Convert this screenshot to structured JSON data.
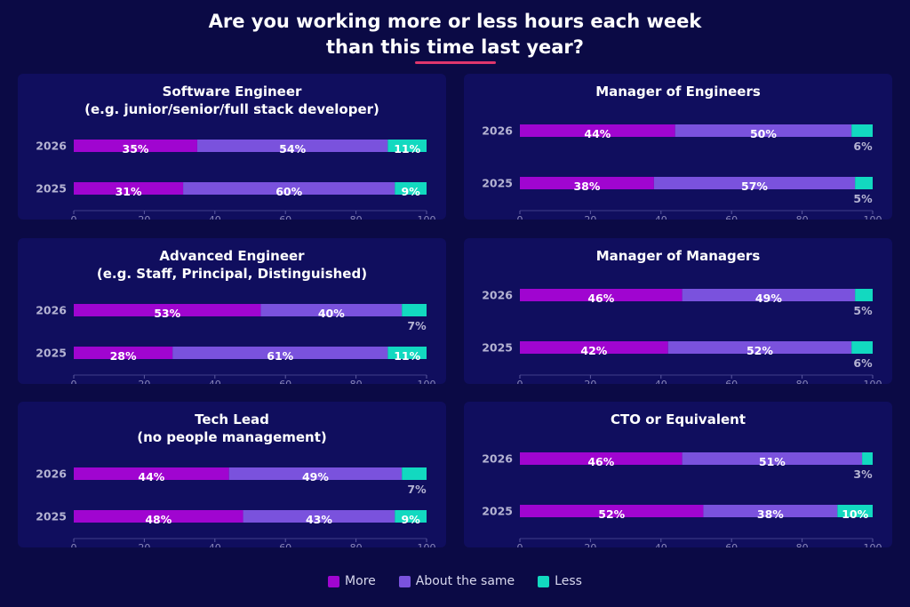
{
  "title": "Are you working more or less hours each week than this time last year?",
  "title_lines": [
    "Are you working more or less hours each week",
    "than this time last year?"
  ],
  "colors": {
    "background": "#0b0a45",
    "panel": "#100e5e",
    "accent": "#e0366c",
    "more": "#a005d0",
    "same": "#7a52dd",
    "less": "#12d9c0"
  },
  "legend": [
    {
      "label": "More",
      "color": "#a005d0"
    },
    {
      "label": "About the same",
      "color": "#7a52dd"
    },
    {
      "label": "Less",
      "color": "#12d9c0"
    }
  ],
  "chart_data": [
    {
      "type": "bar",
      "orientation": "horizontal",
      "stacked": true,
      "title": "Software Engineer\n(e.g. junior/senior/full stack developer)",
      "title_lines": [
        "Software Engineer",
        "(e.g. junior/senior/full stack developer)"
      ],
      "categories": [
        "2026",
        "2025"
      ],
      "series": [
        {
          "name": "More",
          "values": [
            35,
            31
          ]
        },
        {
          "name": "About the same",
          "values": [
            54,
            60
          ]
        },
        {
          "name": "Less",
          "values": [
            11,
            9
          ]
        }
      ],
      "xlim": [
        0,
        100
      ],
      "xticks": [
        "0",
        "20",
        "40",
        "60",
        "80",
        "100"
      ]
    },
    {
      "type": "bar",
      "orientation": "horizontal",
      "stacked": true,
      "title": "Manager of Engineers",
      "title_lines": [
        "Manager of Engineers"
      ],
      "categories": [
        "2026",
        "2025"
      ],
      "series": [
        {
          "name": "More",
          "values": [
            44,
            38
          ]
        },
        {
          "name": "About the same",
          "values": [
            50,
            57
          ]
        },
        {
          "name": "Less",
          "values": [
            6,
            5
          ]
        }
      ],
      "xlim": [
        0,
        100
      ],
      "xticks": [
        "0",
        "20",
        "40",
        "60",
        "80",
        "100"
      ]
    },
    {
      "type": "bar",
      "orientation": "horizontal",
      "stacked": true,
      "title": "Advanced Engineer\n(e.g. Staff, Principal, Distinguished)",
      "title_lines": [
        "Advanced Engineer",
        "(e.g. Staff, Principal, Distinguished)"
      ],
      "categories": [
        "2026",
        "2025"
      ],
      "series": [
        {
          "name": "More",
          "values": [
            53,
            28
          ]
        },
        {
          "name": "About the same",
          "values": [
            40,
            61
          ]
        },
        {
          "name": "Less",
          "values": [
            7,
            11
          ]
        }
      ],
      "xlim": [
        0,
        100
      ],
      "xticks": [
        "0",
        "20",
        "40",
        "60",
        "80",
        "100"
      ]
    },
    {
      "type": "bar",
      "orientation": "horizontal",
      "stacked": true,
      "title": "Manager of Managers",
      "title_lines": [
        "Manager of Managers"
      ],
      "categories": [
        "2026",
        "2025"
      ],
      "series": [
        {
          "name": "More",
          "values": [
            46,
            42
          ]
        },
        {
          "name": "About the same",
          "values": [
            49,
            52
          ]
        },
        {
          "name": "Less",
          "values": [
            5,
            6
          ]
        }
      ],
      "xlim": [
        0,
        100
      ],
      "xticks": [
        "0",
        "20",
        "40",
        "60",
        "80",
        "100"
      ]
    },
    {
      "type": "bar",
      "orientation": "horizontal",
      "stacked": true,
      "title": "Tech Lead\n(no people management)",
      "title_lines": [
        "Tech Lead",
        "(no people management)"
      ],
      "categories": [
        "2026",
        "2025"
      ],
      "series": [
        {
          "name": "More",
          "values": [
            44,
            48
          ]
        },
        {
          "name": "About the same",
          "values": [
            49,
            43
          ]
        },
        {
          "name": "Less",
          "values": [
            7,
            9
          ]
        }
      ],
      "xlim": [
        0,
        100
      ],
      "xticks": [
        "0",
        "20",
        "40",
        "60",
        "80",
        "100"
      ]
    },
    {
      "type": "bar",
      "orientation": "horizontal",
      "stacked": true,
      "title": "CTO or Equivalent",
      "title_lines": [
        "CTO or Equivalent"
      ],
      "categories": [
        "2026",
        "2025"
      ],
      "series": [
        {
          "name": "More",
          "values": [
            46,
            52
          ]
        },
        {
          "name": "About the same",
          "values": [
            51,
            38
          ]
        },
        {
          "name": "Less",
          "values": [
            3,
            10
          ]
        }
      ],
      "xlim": [
        0,
        100
      ],
      "xticks": [
        "0",
        "20",
        "40",
        "60",
        "80",
        "100"
      ]
    }
  ]
}
